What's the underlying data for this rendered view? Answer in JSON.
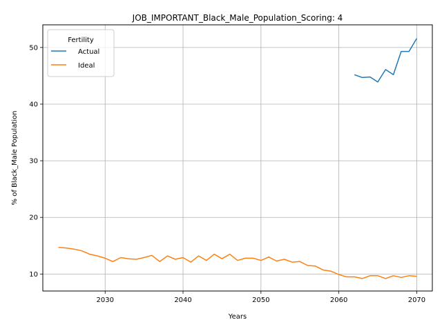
{
  "chart_data": {
    "type": "line",
    "title": "JOB_IMPORTANT_Black_Male_Population_Scoring: 4",
    "xlabel": "Years",
    "ylabel": "% of Black_Male Population",
    "xlim": [
      2022,
      2072
    ],
    "ylim": [
      7,
      54
    ],
    "xticks": [
      2030,
      2040,
      2050,
      2060,
      2070
    ],
    "yticks": [
      10,
      20,
      30,
      40,
      50
    ],
    "grid": true,
    "legend": {
      "title": "Fertility",
      "placement": "top-left"
    },
    "series": [
      {
        "name": "Actual",
        "color": "#1f77b4",
        "x": [
          2062,
          2063,
          2064,
          2065,
          2066,
          2067,
          2068,
          2069,
          2070
        ],
        "y": [
          45.2,
          44.7,
          44.8,
          43.9,
          46.1,
          45.2,
          49.3,
          49.3,
          51.6
        ]
      },
      {
        "name": "Ideal",
        "color": "#ff7f0e",
        "x": [
          2024,
          2025,
          2026,
          2027,
          2028,
          2029,
          2030,
          2031,
          2032,
          2033,
          2034,
          2035,
          2036,
          2037,
          2038,
          2039,
          2040,
          2041,
          2042,
          2043,
          2044,
          2045,
          2046,
          2047,
          2048,
          2049,
          2050,
          2051,
          2052,
          2053,
          2054,
          2055,
          2056,
          2057,
          2058,
          2059,
          2060,
          2061,
          2062,
          2063,
          2064,
          2065,
          2066,
          2067,
          2068,
          2069,
          2070
        ],
        "y": [
          14.7,
          14.6,
          14.4,
          14.1,
          13.5,
          13.2,
          12.8,
          12.2,
          12.9,
          12.7,
          12.6,
          12.9,
          13.3,
          12.2,
          13.2,
          12.6,
          12.9,
          12.1,
          13.2,
          12.4,
          13.5,
          12.7,
          13.5,
          12.4,
          12.8,
          12.8,
          12.4,
          13.0,
          12.3,
          12.6,
          12.1,
          12.2,
          11.5,
          11.4,
          10.7,
          10.5,
          9.9,
          9.5,
          9.5,
          9.2,
          9.7,
          9.7,
          9.2,
          9.7,
          9.4,
          9.7,
          9.6
        ]
      }
    ]
  }
}
